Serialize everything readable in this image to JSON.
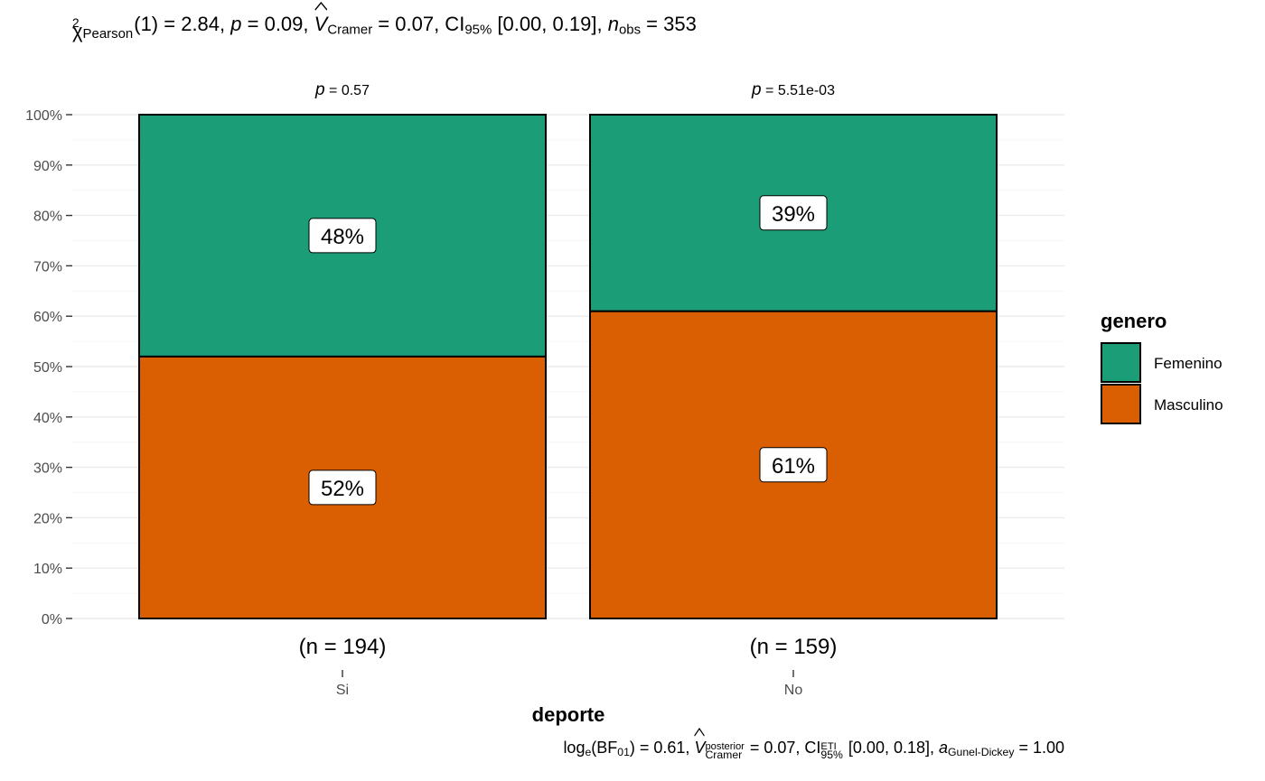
{
  "stats_subtitle": {
    "chi": "χ",
    "chi_sup": "2",
    "chi_sub": "Pearson",
    "df_text": "(1) = 2.84, ",
    "p_sym": "p",
    "p_text": " = 0.09, ",
    "v_sym": "V",
    "v_sub": "Cramer",
    "v_text": " = 0.07, CI",
    "ci_sub": "95%",
    "ci_text": " [0.00, 0.19], ",
    "n_sym": "n",
    "n_sub": "obs",
    "n_text": " = 353"
  },
  "stats_caption": {
    "log": "log",
    "log_sub": "e",
    "bf_open": "(BF",
    "bf_sub": "01",
    "bf_text": ") = 0.61, ",
    "v_sym": "V",
    "v_sup": "posterior",
    "v_sub": "Cramer",
    "v_text": " = 0.07, CI",
    "ci_sup": "ETI",
    "ci_sub": "95%",
    "ci_text": " [0.00, 0.18], ",
    "a_sym": "a",
    "a_sub": "Gunel-Dickey",
    "a_text": " = 1.00"
  },
  "chart_data": {
    "type": "bar",
    "stacked": true,
    "percent": true,
    "categories": [
      "Si",
      "No"
    ],
    "category_counts": [
      "(n = 194)",
      "(n = 159)"
    ],
    "category_pvalues": [
      {
        "sym": "p",
        "text": " = 0.57"
      },
      {
        "sym": "p",
        "text": " = 5.51e-03"
      }
    ],
    "series": [
      {
        "name": "Masculino",
        "values": [
          52,
          61
        ],
        "labels": [
          "52%",
          "61%"
        ],
        "color": "#D95F02"
      },
      {
        "name": "Femenino",
        "values": [
          48,
          39
        ],
        "labels": [
          "48%",
          "39%"
        ],
        "color": "#1B9E77"
      }
    ],
    "xlabel": "deporte",
    "ylabel": "",
    "ylim": [
      0,
      100
    ],
    "yticks": [
      0,
      10,
      20,
      30,
      40,
      50,
      60,
      70,
      80,
      90,
      100
    ],
    "ytick_labels": [
      "0%",
      "10%",
      "20%",
      "30%",
      "40%",
      "50%",
      "60%",
      "70%",
      "80%",
      "90%",
      "100%"
    ],
    "grid": true,
    "legend": {
      "title": "genero",
      "position": "right",
      "entries": [
        {
          "name": "Femenino",
          "color": "#1B9E77"
        },
        {
          "name": "Masculino",
          "color": "#D95F02"
        }
      ]
    }
  }
}
